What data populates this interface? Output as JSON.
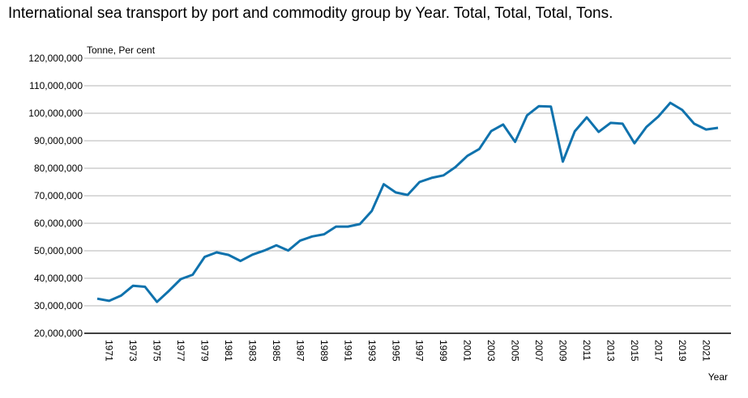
{
  "chart_data": {
    "type": "line",
    "title": "International sea transport by port and commodity group by Year. Total, Total, Total, Tons.",
    "xlabel": "Year",
    "ylabel": "Tonne, Per cent",
    "ylim": [
      20000000,
      120000000
    ],
    "yticks": [
      20000000,
      30000000,
      40000000,
      50000000,
      60000000,
      70000000,
      80000000,
      90000000,
      100000000,
      110000000,
      120000000
    ],
    "ytick_labels": [
      "20,000,000",
      "30,000,000",
      "40,000,000",
      "50,000,000",
      "60,000,000",
      "70,000,000",
      "80,000,000",
      "90,000,000",
      "100,000,000",
      "110,000,000",
      "120,000,000"
    ],
    "xtick_labels": [
      "1971",
      "1973",
      "1975",
      "1977",
      "1979",
      "1981",
      "1983",
      "1985",
      "1987",
      "1989",
      "1991",
      "1993",
      "1995",
      "1997",
      "1999",
      "2001",
      "2003",
      "2005",
      "2007",
      "2009",
      "2011",
      "2013",
      "2015",
      "2017",
      "2019",
      "2021"
    ],
    "grid": true,
    "legend": "none",
    "x": [
      1970,
      1971,
      1972,
      1973,
      1974,
      1975,
      1976,
      1977,
      1978,
      1979,
      1980,
      1981,
      1982,
      1983,
      1984,
      1985,
      1986,
      1987,
      1988,
      1989,
      1990,
      1991,
      1992,
      1993,
      1994,
      1995,
      1996,
      1997,
      1998,
      1999,
      2000,
      2001,
      2002,
      2003,
      2004,
      2005,
      2006,
      2007,
      2008,
      2009,
      2010,
      2011,
      2012,
      2013,
      2014,
      2015,
      2016,
      2017,
      2018,
      2019,
      2020,
      2021,
      2022
    ],
    "series": [
      {
        "name": "Total",
        "color": "#0f72ad",
        "values": [
          32600000,
          31800000,
          33700000,
          37300000,
          36900000,
          31400000,
          35400000,
          39700000,
          41300000,
          47800000,
          49400000,
          48500000,
          46300000,
          48600000,
          50100000,
          52000000,
          50100000,
          53700000,
          55200000,
          56000000,
          58800000,
          58800000,
          59700000,
          64500000,
          74200000,
          71200000,
          70300000,
          75000000,
          76500000,
          77400000,
          80400000,
          84500000,
          87000000,
          93500000,
          95900000,
          89600000,
          99200000,
          102600000,
          102400000,
          82400000,
          93400000,
          98500000,
          93200000,
          96500000,
          96200000,
          89100000,
          95000000,
          98800000,
          103800000,
          101200000,
          96200000,
          94100000,
          94700000
        ]
      }
    ]
  }
}
